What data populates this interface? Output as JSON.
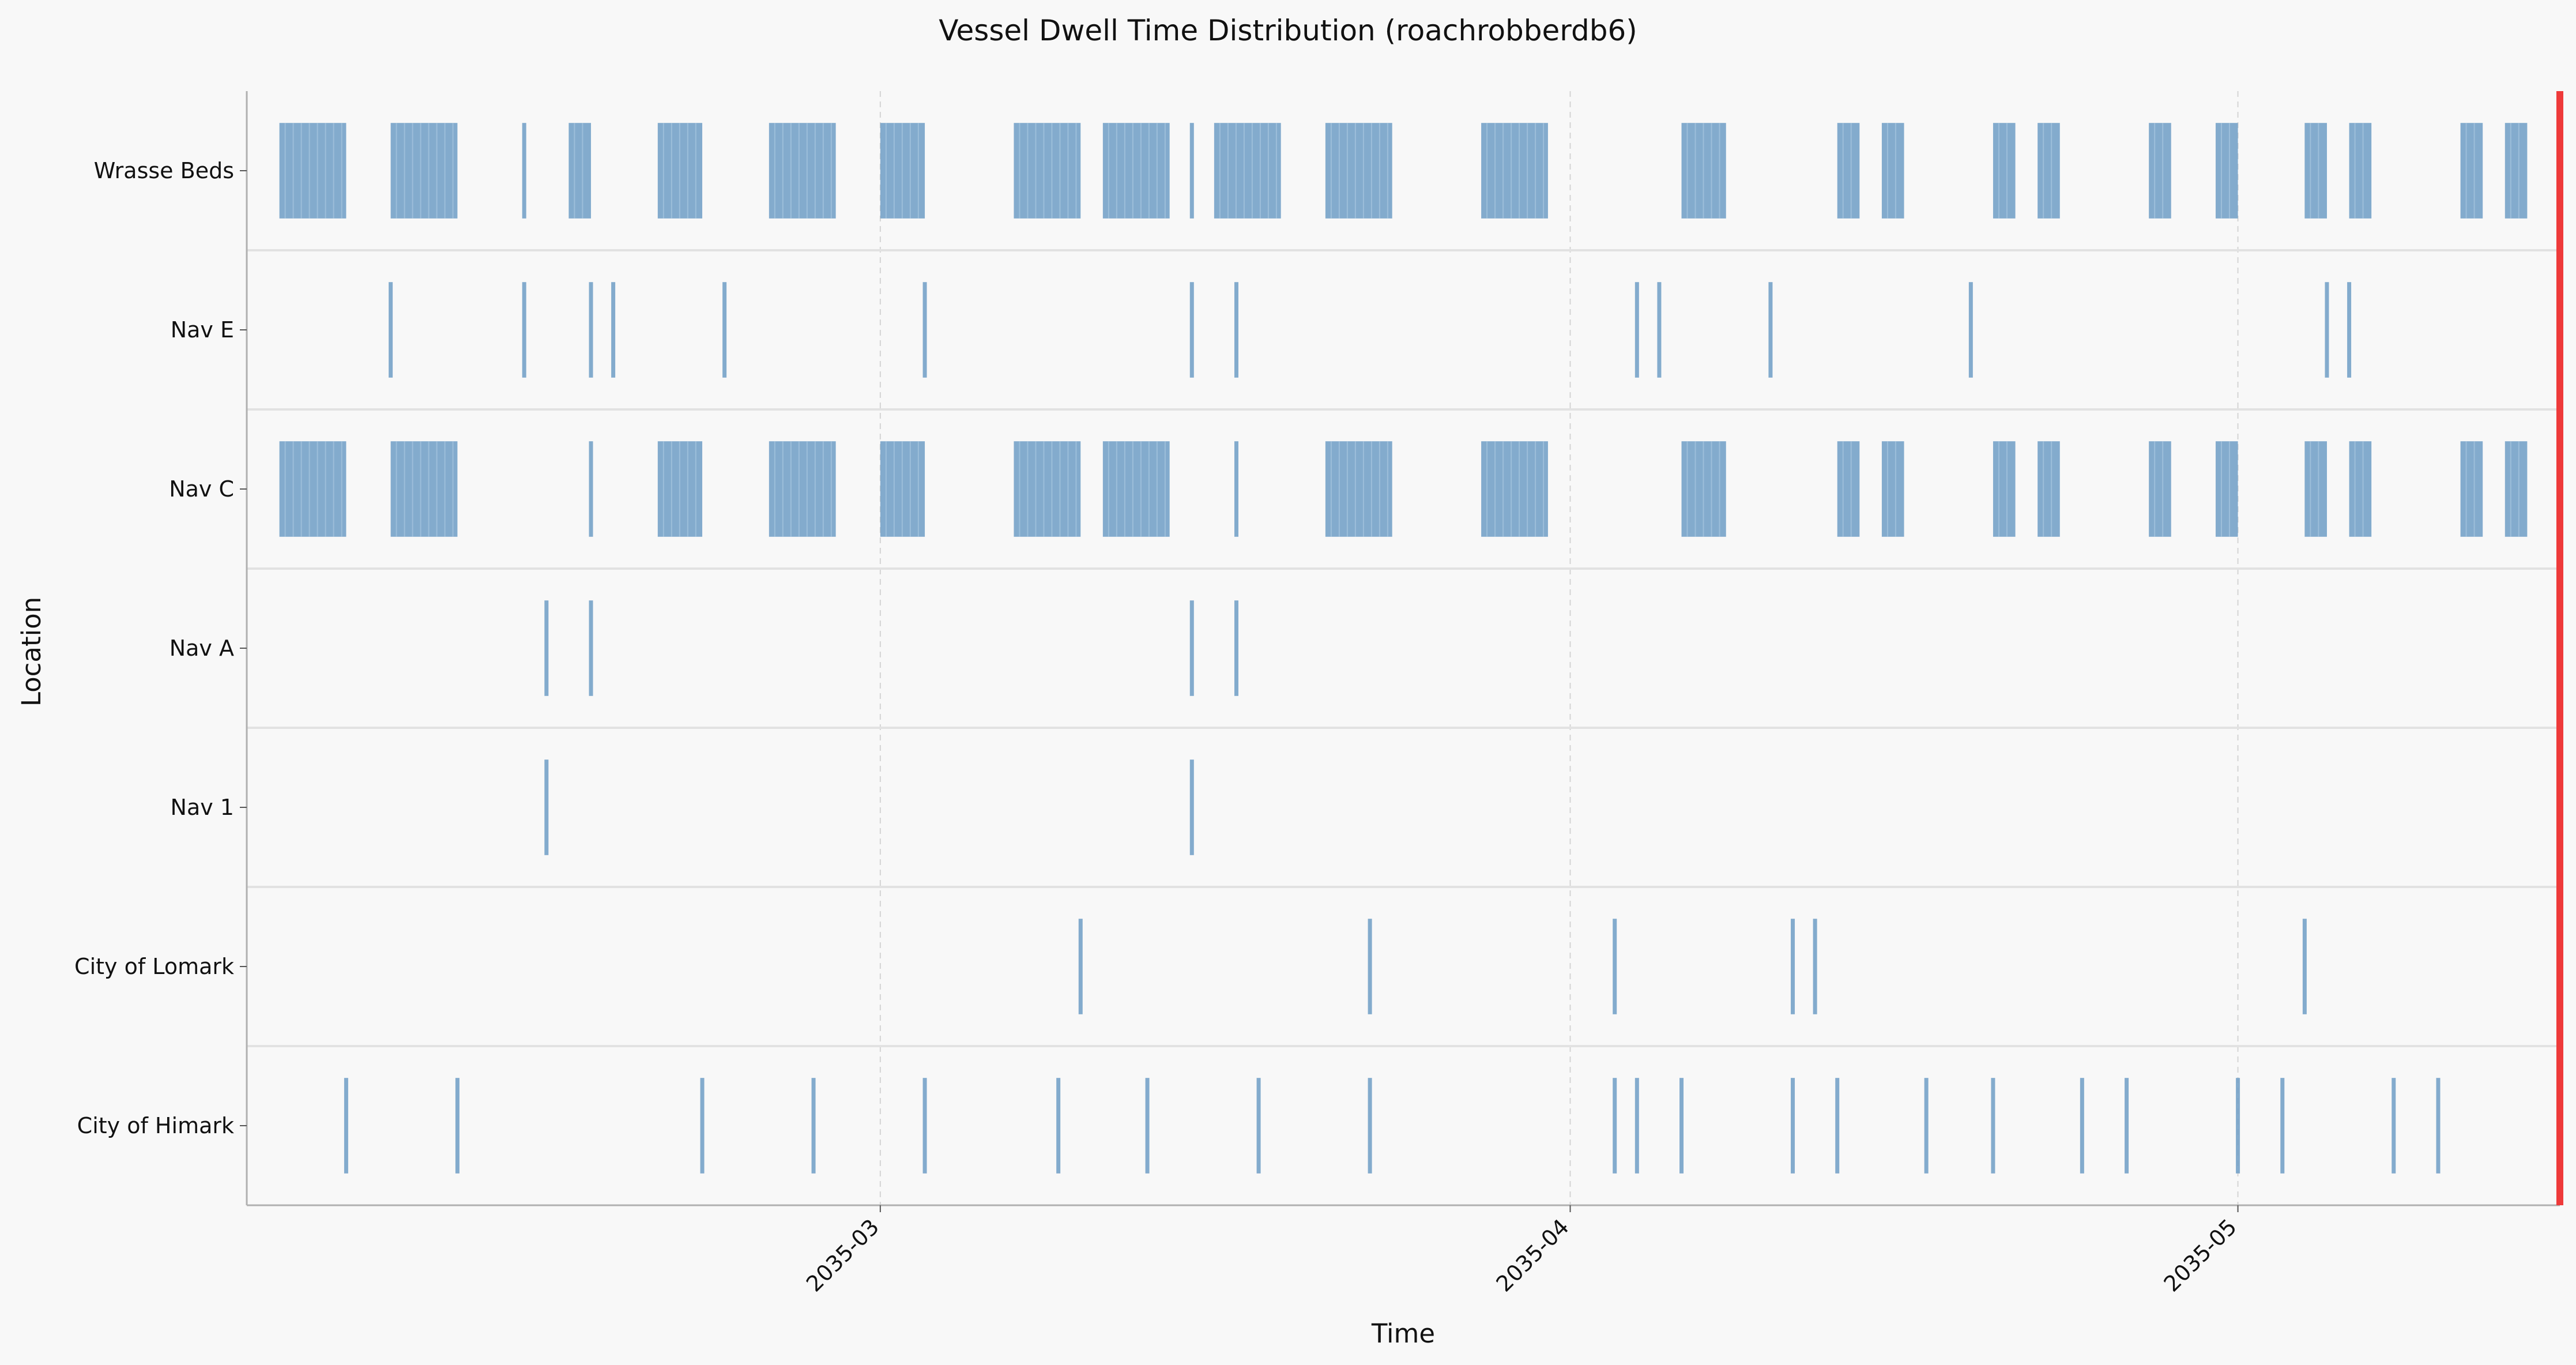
{
  "chart_data": {
    "type": "event-strip",
    "title": "Vessel Dwell Time Distribution (roachrobberdb6)",
    "xlabel": "Time",
    "ylabel": "Location",
    "x_range": [
      "2035-02-01",
      "2035-05-15"
    ],
    "x_ticks": [
      "2035-03",
      "2035-04",
      "2035-05"
    ],
    "x_grid": "dashed",
    "colors": {
      "event": "#6f9dc5",
      "marker": "#ee3a3a",
      "background": "#f8f8f8",
      "separator": "#e2e2e2"
    },
    "marker_line": "2035-05-15",
    "categories": [
      "Wrasse Beds",
      "Nav E",
      "Nav C",
      "Nav A",
      "Nav 1",
      "City of Lomark",
      "City of Himark"
    ],
    "series": [
      {
        "location": "Wrasse Beds",
        "events": [
          [
            "2035-02-02",
            "2035-02-05"
          ],
          [
            "2035-02-07",
            "2035-02-10"
          ],
          [
            "2035-02-15",
            "2035-02-16"
          ],
          [
            "2035-02-19",
            "2035-02-21"
          ],
          [
            "2035-02-24",
            "2035-02-27"
          ],
          [
            "2035-03-01",
            "2035-03-03"
          ],
          [
            "2035-03-07",
            "2035-03-10"
          ],
          [
            "2035-03-11",
            "2035-03-14"
          ],
          [
            "2035-03-16",
            "2035-03-19"
          ],
          [
            "2035-03-21",
            "2035-03-24"
          ],
          [
            "2035-03-28",
            "2035-03-31"
          ],
          [
            "2035-04-06",
            "2035-04-08"
          ],
          [
            "2035-04-13",
            "2035-04-14"
          ],
          [
            "2035-04-15",
            "2035-04-16"
          ],
          [
            "2035-04-20",
            "2035-04-21"
          ],
          [
            "2035-04-22",
            "2035-04-23"
          ],
          [
            "2035-04-27",
            "2035-04-28"
          ],
          [
            "2035-04-30",
            "2035-05-01"
          ],
          [
            "2035-05-04",
            "2035-05-05"
          ],
          [
            "2035-05-06",
            "2035-05-07"
          ],
          [
            "2035-05-11",
            "2035-05-12"
          ],
          [
            "2035-05-13",
            "2035-05-14"
          ]
        ],
        "points": [
          "2035-02-13",
          "2035-03-15"
        ]
      },
      {
        "location": "Nav E",
        "events": [],
        "points": [
          "2035-02-07",
          "2035-02-13",
          "2035-02-16",
          "2035-02-17",
          "2035-02-22",
          "2035-03-03",
          "2035-03-15",
          "2035-03-17",
          "2035-04-04",
          "2035-04-05",
          "2035-04-10",
          "2035-04-19",
          "2035-05-05",
          "2035-05-06"
        ]
      },
      {
        "location": "Nav C",
        "events": [
          [
            "2035-02-02",
            "2035-02-05"
          ],
          [
            "2035-02-07",
            "2035-02-10"
          ],
          [
            "2035-02-19",
            "2035-02-21"
          ],
          [
            "2035-02-24",
            "2035-02-27"
          ],
          [
            "2035-03-01",
            "2035-03-03"
          ],
          [
            "2035-03-07",
            "2035-03-10"
          ],
          [
            "2035-03-11",
            "2035-03-14"
          ],
          [
            "2035-03-21",
            "2035-03-24"
          ],
          [
            "2035-03-28",
            "2035-03-31"
          ],
          [
            "2035-04-06",
            "2035-04-08"
          ],
          [
            "2035-04-13",
            "2035-04-14"
          ],
          [
            "2035-04-15",
            "2035-04-16"
          ],
          [
            "2035-04-20",
            "2035-04-21"
          ],
          [
            "2035-04-22",
            "2035-04-23"
          ],
          [
            "2035-04-27",
            "2035-04-28"
          ],
          [
            "2035-04-30",
            "2035-05-01"
          ],
          [
            "2035-05-04",
            "2035-05-05"
          ],
          [
            "2035-05-06",
            "2035-05-07"
          ],
          [
            "2035-05-11",
            "2035-05-12"
          ],
          [
            "2035-05-13",
            "2035-05-14"
          ]
        ],
        "points": [
          "2035-02-16",
          "2035-03-17"
        ]
      },
      {
        "location": "Nav A",
        "events": [],
        "points": [
          "2035-02-14",
          "2035-02-16",
          "2035-03-15",
          "2035-03-17"
        ]
      },
      {
        "location": "Nav 1",
        "events": [],
        "points": [
          "2035-02-14",
          "2035-03-15"
        ]
      },
      {
        "location": "City of Lomark",
        "events": [],
        "points": [
          "2035-03-10",
          "2035-03-23",
          "2035-04-03",
          "2035-04-11",
          "2035-04-12",
          "2035-05-04"
        ]
      },
      {
        "location": "City of Himark",
        "events": [],
        "points": [
          "2035-02-05",
          "2035-02-10",
          "2035-02-21",
          "2035-02-26",
          "2035-03-03",
          "2035-03-09",
          "2035-03-13",
          "2035-03-18",
          "2035-03-23",
          "2035-04-03",
          "2035-04-04",
          "2035-04-06",
          "2035-04-11",
          "2035-04-13",
          "2035-04-17",
          "2035-04-20",
          "2035-04-24",
          "2035-04-26",
          "2035-05-01",
          "2035-05-03",
          "2035-05-08",
          "2035-05-10"
        ]
      }
    ]
  }
}
